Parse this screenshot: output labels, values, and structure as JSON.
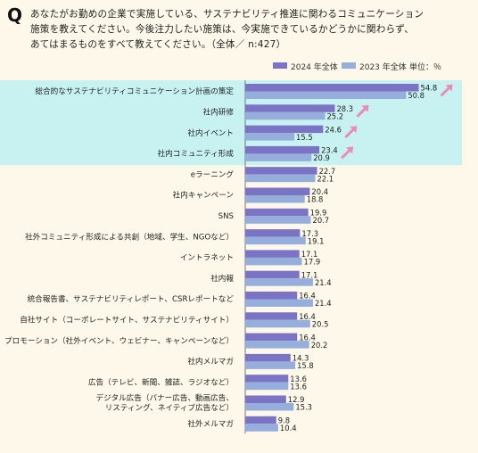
{
  "question": {
    "mark": "Q",
    "text": "あなたがお勤めの企業で実施している、サステナビリティ推進に関わるコミュニケーション\n施策を教えてください。今後注力したい施策は、今実施できているかどうかに関わらず、\nあてはまるものをすべて教えてください。（全体／ n:427）"
  },
  "colors": {
    "background": "#fdf8e9",
    "highlight": "#c8f2f2",
    "series_2024": "#7b73c4",
    "series_2023": "#96aedb",
    "arrow": "#ec8ab8"
  },
  "chart_data": {
    "type": "bar",
    "orientation": "horizontal",
    "unit_label": "単位：％",
    "categories": [
      "総合的なサステナビリティコミュニケーション計画の策定",
      "社内研修",
      "社内イベント",
      "社内コミュニティ形成",
      "eラーニング",
      "社内キャンペーン",
      "SNS",
      "社外コミュニティ形成による共創（地域、学生、NGOなど）",
      "イントラネット",
      "社内報",
      "統合報告書、サステナビリティレポート、CSRレポートなど",
      "自社サイト（コーポレートサイト、サステナビリティサイト）",
      "プロモーション（社外イベント、ウェビナー、キャンペーンなど）",
      "社内メルマガ",
      "広告（テレビ、新聞、雑誌、ラジオなど）",
      "デジタル広告（バナー広告、動画広告、\nリスティング、ネイティブ広告など）",
      "社外メルマガ"
    ],
    "series": [
      {
        "name": "2024 年全体",
        "values": [
          54.8,
          28.3,
          24.6,
          23.4,
          22.7,
          20.4,
          19.9,
          17.3,
          17.1,
          17.1,
          16.4,
          16.4,
          16.4,
          14.3,
          13.6,
          12.9,
          9.8
        ]
      },
      {
        "name": "2023 年全体",
        "values": [
          50.8,
          25.2,
          15.5,
          20.9,
          22.1,
          18.8,
          20.7,
          19.1,
          17.9,
          21.4,
          21.4,
          20.5,
          20.2,
          15.8,
          13.6,
          15.3,
          10.4
        ]
      }
    ],
    "highlighted_top_categories": 4,
    "increase_arrows_on": [
      0,
      1,
      2,
      3
    ],
    "xlim": [
      0,
      60
    ]
  }
}
